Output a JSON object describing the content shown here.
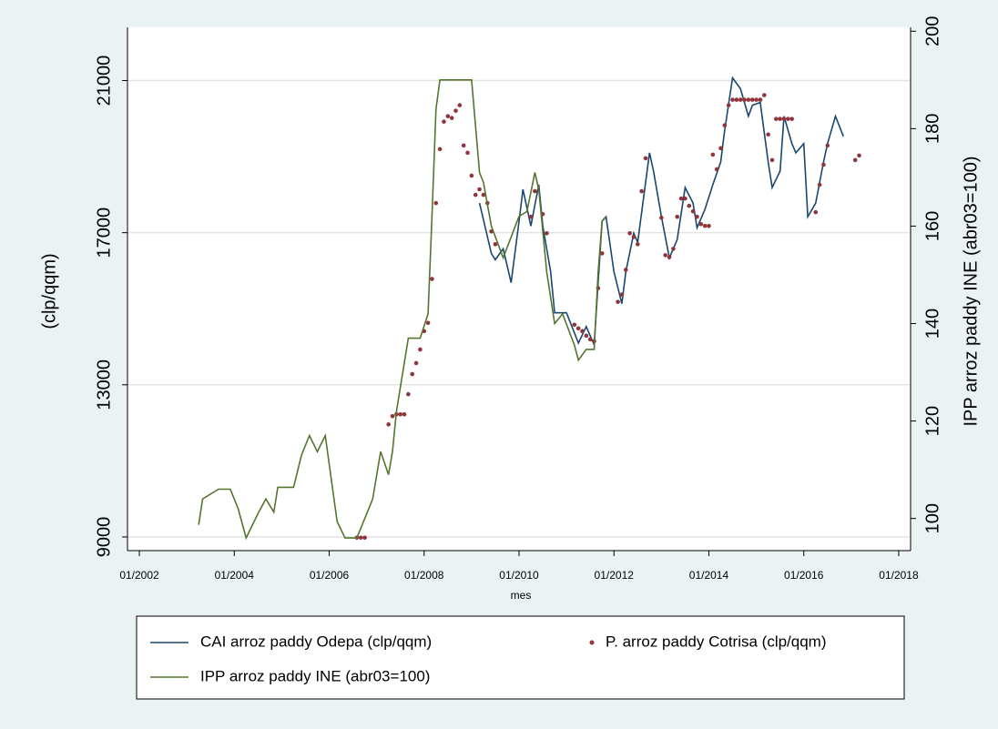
{
  "chart_data": {
    "type": "line",
    "x_label": "mes",
    "y_label": "(clp/qqm)",
    "y2_label": "IPP arroz paddy INE (abr03=100)",
    "xlim": [
      "10/2001",
      "04/2018"
    ],
    "xticks": [
      "01/2002",
      "01/2004",
      "01/2006",
      "01/2008",
      "01/2010",
      "01/2012",
      "01/2014",
      "01/2016",
      "01/2018"
    ],
    "ylim": [
      8640,
      22400
    ],
    "yticks": [
      9000,
      13000,
      17000,
      21000
    ],
    "y2lim": [
      93.4,
      200.8
    ],
    "y2ticks": [
      100,
      120,
      140,
      160,
      180,
      200
    ],
    "grid": true,
    "series": [
      {
        "name": "CAI arroz paddy Odepa (clp/qqm)",
        "color": "#1a476f",
        "type": "line",
        "x": [
          "03/2009",
          "06/2009",
          "07/2009",
          "09/2009",
          "11/2009",
          "01/2010",
          "02/2010",
          "04/2010",
          "06/2010",
          "07/2010",
          "09/2010",
          "10/2010",
          "01/2011",
          "04/2011",
          "06/2011",
          "08/2011",
          "10/2011",
          "11/2011",
          "01/2012",
          "03/2012",
          "04/2012",
          "06/2012",
          "07/2012",
          "10/2012",
          "11/2012",
          "01/2013",
          "03/2013",
          "05/2013",
          "07/2013",
          "09/2013",
          "10/2013",
          "12/2013",
          "02/2014",
          "04/2014",
          "05/2014",
          "07/2014",
          "09/2014",
          "11/2014",
          "12/2014",
          "02/2015",
          "04/2015",
          "05/2015",
          "07/2015",
          "08/2015",
          "10/2015",
          "11/2015",
          "01/2016",
          "02/2016",
          "04/2016",
          "06/2016",
          "07/2016",
          "09/2016",
          "11/2016"
        ],
        "values": [
          17778,
          16456,
          16287,
          16576,
          15686,
          17297,
          18139,
          17177,
          18259,
          17177,
          15975,
          14892,
          14892,
          14099,
          14532,
          14051,
          17297,
          17418,
          15975,
          15133,
          15975,
          16985,
          16744,
          19101,
          18620,
          17418,
          16335,
          16816,
          18187,
          17778,
          17129,
          17610,
          18259,
          18860,
          19702,
          21073,
          20785,
          20063,
          20352,
          20424,
          18860,
          18187,
          18620,
          20063,
          19342,
          19101,
          19342,
          17418,
          17778,
          18860,
          19342,
          20063,
          19534
        ]
      },
      {
        "name": "P. arroz paddy Cotrisa (clp/qqm)",
        "color": "#90353b",
        "type": "scatter",
        "x": [
          "08/2006",
          "09/2006",
          "10/2006",
          "04/2007",
          "05/2007",
          "06/2007",
          "07/2007",
          "08/2007",
          "09/2007",
          "10/2007",
          "11/2007",
          "12/2007",
          "01/2008",
          "02/2008",
          "03/2008",
          "04/2008",
          "05/2008",
          "06/2008",
          "07/2008",
          "08/2008",
          "09/2008",
          "10/2008",
          "11/2008",
          "12/2008",
          "01/2009",
          "02/2009",
          "03/2009",
          "04/2009",
          "05/2009",
          "06/2009",
          "07/2009",
          "04/2010",
          "05/2010",
          "07/2010",
          "08/2010",
          "03/2011",
          "04/2011",
          "05/2011",
          "06/2011",
          "07/2011",
          "08/2011",
          "09/2011",
          "10/2011",
          "02/2012",
          "03/2012",
          "04/2012",
          "05/2012",
          "06/2012",
          "07/2012",
          "08/2012",
          "09/2012",
          "01/2013",
          "02/2013",
          "03/2013",
          "04/2013",
          "05/2013",
          "06/2013",
          "07/2013",
          "08/2013",
          "09/2013",
          "10/2013",
          "11/2013",
          "12/2013",
          "01/2014",
          "02/2014",
          "03/2014",
          "04/2014",
          "05/2014",
          "06/2014",
          "07/2014",
          "08/2014",
          "09/2014",
          "10/2014",
          "11/2014",
          "12/2014",
          "01/2015",
          "02/2015",
          "03/2015",
          "04/2015",
          "05/2015",
          "06/2015",
          "07/2015",
          "08/2015",
          "09/2015",
          "10/2015",
          "04/2016",
          "05/2016",
          "06/2016",
          "07/2016",
          "02/2017",
          "03/2017"
        ],
        "values": [
          8980,
          8980,
          8980,
          11958,
          12175,
          12223,
          12223,
          12223,
          12752,
          13281,
          13570,
          13930,
          14411,
          14628,
          15782,
          17778,
          19197,
          19919,
          20063,
          20015,
          20207,
          20352,
          19293,
          19101,
          18500,
          17995,
          18139,
          17995,
          17778,
          17033,
          16696,
          17418,
          18091,
          17488,
          16985,
          14580,
          14484,
          14411,
          14291,
          14195,
          14147,
          15542,
          16456,
          15181,
          15373,
          16023,
          16985,
          16889,
          16696,
          18091,
          18957,
          17394,
          16407,
          16359,
          16576,
          17418,
          17898,
          17898,
          17706,
          17562,
          17418,
          17225,
          17177,
          17177,
          19053,
          18668,
          19221,
          19823,
          20352,
          20496,
          20496,
          20496,
          20496,
          20496,
          20496,
          20496,
          20496,
          20616,
          19582,
          18908,
          19991,
          19991,
          19991,
          19991,
          19991,
          17538,
          18259,
          18788,
          19293,
          18908,
          19029
        ]
      },
      {
        "name": "IPP arroz paddy INE (abr03=100)",
        "color": "#55752f",
        "type": "line",
        "axis": "y2",
        "x": [
          "04/2003",
          "05/2003",
          "09/2003",
          "12/2003",
          "02/2004",
          "04/2004",
          "07/2004",
          "09/2004",
          "11/2004",
          "12/2004",
          "04/2005",
          "06/2005",
          "08/2005",
          "10/2005",
          "12/2005",
          "03/2006",
          "05/2006",
          "08/2006",
          "10/2006",
          "12/2006",
          "02/2007",
          "04/2007",
          "05/2007",
          "06/2007",
          "09/2007",
          "12/2007",
          "02/2008",
          "03/2008",
          "04/2008",
          "05/2008",
          "01/2009",
          "03/2009",
          "04/2009",
          "06/2009",
          "09/2009",
          "01/2010",
          "03/2010",
          "05/2010",
          "06/2010",
          "08/2010",
          "10/2010",
          "12/2010",
          "03/2011",
          "04/2011",
          "06/2011",
          "08/2011",
          "09/2011",
          "10/2011",
          "11/2011"
        ],
        "values": [
          98.7,
          104,
          106,
          106,
          102,
          96,
          101,
          104,
          101.3,
          106.4,
          106.4,
          113,
          117,
          113.7,
          117,
          99.4,
          96,
          96,
          100,
          104,
          113.7,
          109,
          113.7,
          122,
          137,
          137,
          142,
          162,
          184,
          190,
          190,
          171,
          169,
          160,
          153.5,
          162,
          163,
          171,
          167.5,
          150.6,
          140,
          142,
          135.6,
          132.5,
          134.7,
          134.7,
          150.6,
          161,
          162
        ]
      }
    ]
  }
}
